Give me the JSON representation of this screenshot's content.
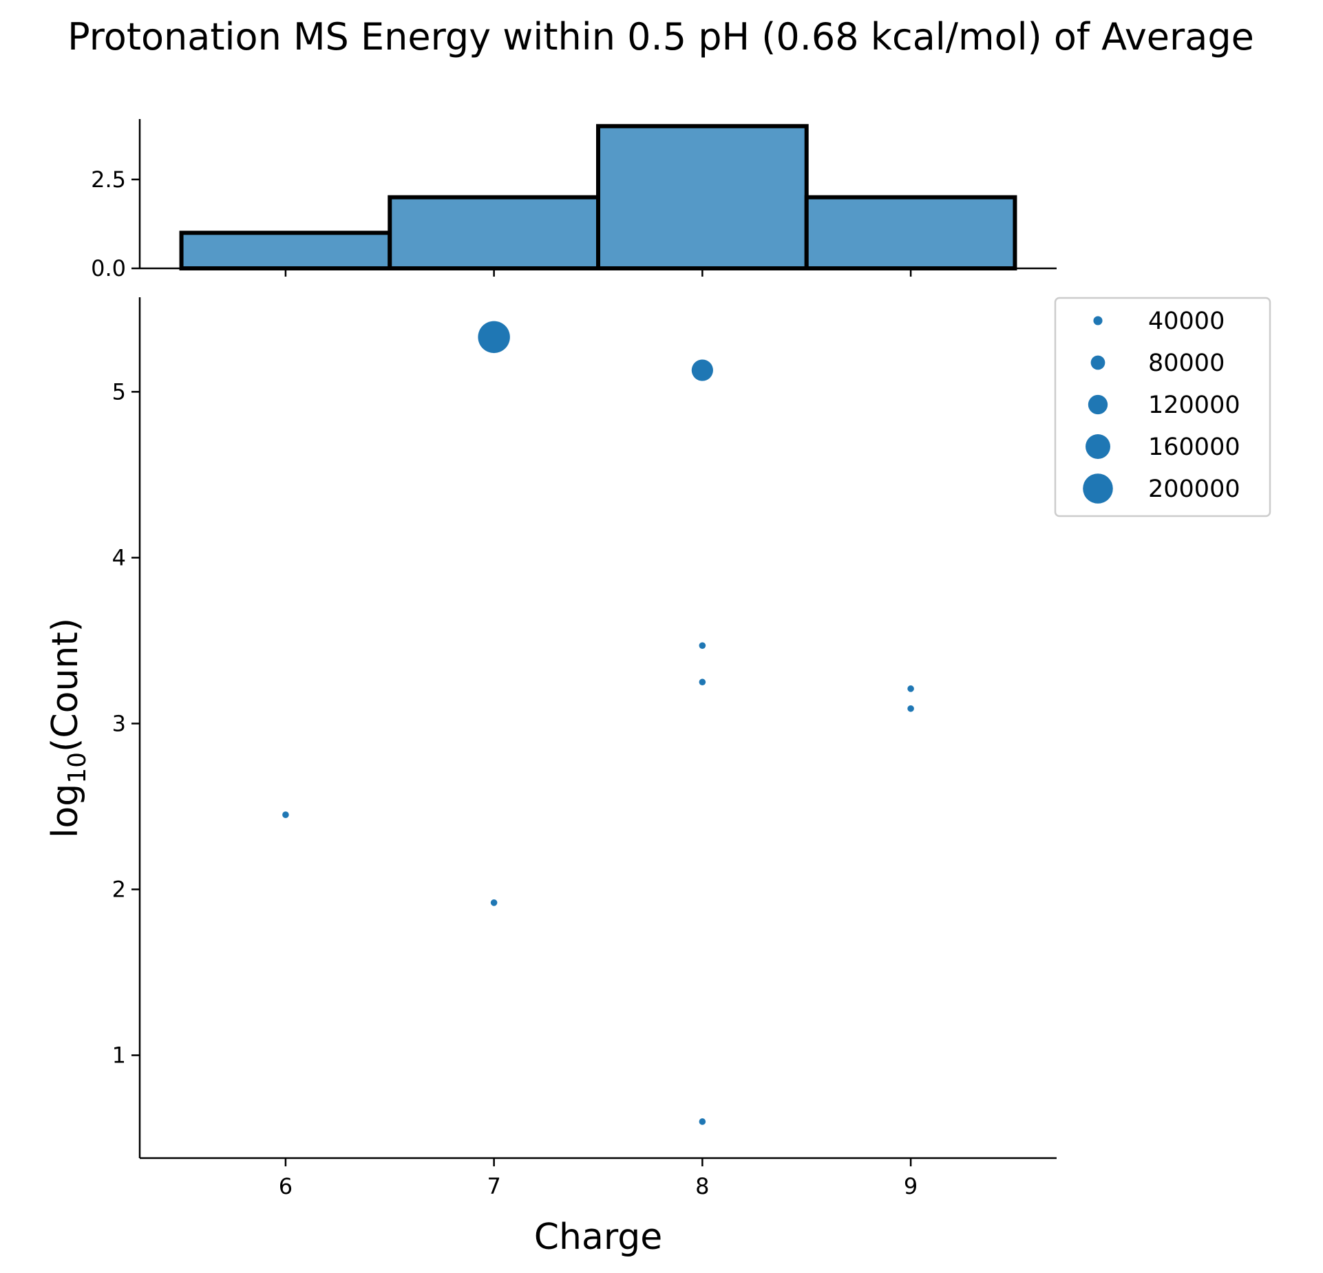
{
  "chart_data": {
    "title": "Protonation MS Energy within 0.5 pH (0.68 kcal/mol) of Average",
    "colors": {
      "point": "#1f77b4",
      "bar": "#5599c7",
      "bar_edge": "#000000"
    },
    "marginal_histogram": {
      "type": "bar",
      "bins": [
        {
          "x0": 5.5,
          "x1": 6.5,
          "value": 1
        },
        {
          "x0": 6.5,
          "x1": 7.5,
          "value": 2
        },
        {
          "x0": 7.5,
          "x1": 8.5,
          "value": 4
        },
        {
          "x0": 8.5,
          "x1": 9.5,
          "value": 2
        }
      ],
      "ylim": [
        0,
        4.2
      ],
      "yticks": [
        0.0,
        2.5
      ],
      "ytick_labels": [
        "0.0",
        "2.5"
      ]
    },
    "scatter": {
      "type": "scatter",
      "xlabel": "Charge",
      "ylabel_main": "log",
      "ylabel_sub": "10",
      "ylabel_tail": "(Count)",
      "xlim": [
        5.3,
        9.7
      ],
      "ylim": [
        0.38,
        5.57
      ],
      "xticks": [
        6,
        7,
        8,
        9
      ],
      "xtick_labels": [
        "6",
        "7",
        "8",
        "9"
      ],
      "yticks": [
        1,
        2,
        3,
        4,
        5
      ],
      "ytick_labels": [
        "1",
        "2",
        "3",
        "4",
        "5"
      ],
      "grid": false,
      "points": [
        {
          "x": 7,
          "y": 5.33,
          "size": 215000
        },
        {
          "x": 8,
          "y": 5.13,
          "size": 135000
        },
        {
          "x": 8,
          "y": 3.47,
          "size": 2950
        },
        {
          "x": 8,
          "y": 3.25,
          "size": 1780
        },
        {
          "x": 9,
          "y": 3.21,
          "size": 1620
        },
        {
          "x": 9,
          "y": 3.09,
          "size": 1230
        },
        {
          "x": 6,
          "y": 2.45,
          "size": 280
        },
        {
          "x": 7,
          "y": 1.92,
          "size": 83
        },
        {
          "x": 8,
          "y": 0.6,
          "size": 4
        }
      ]
    },
    "legend": {
      "position": "upper-right outside",
      "entries": [
        {
          "label": "40000",
          "size": 40000
        },
        {
          "label": "80000",
          "size": 80000
        },
        {
          "label": "120000",
          "size": 120000
        },
        {
          "label": "160000",
          "size": 160000
        },
        {
          "label": "200000",
          "size": 200000
        }
      ]
    }
  }
}
